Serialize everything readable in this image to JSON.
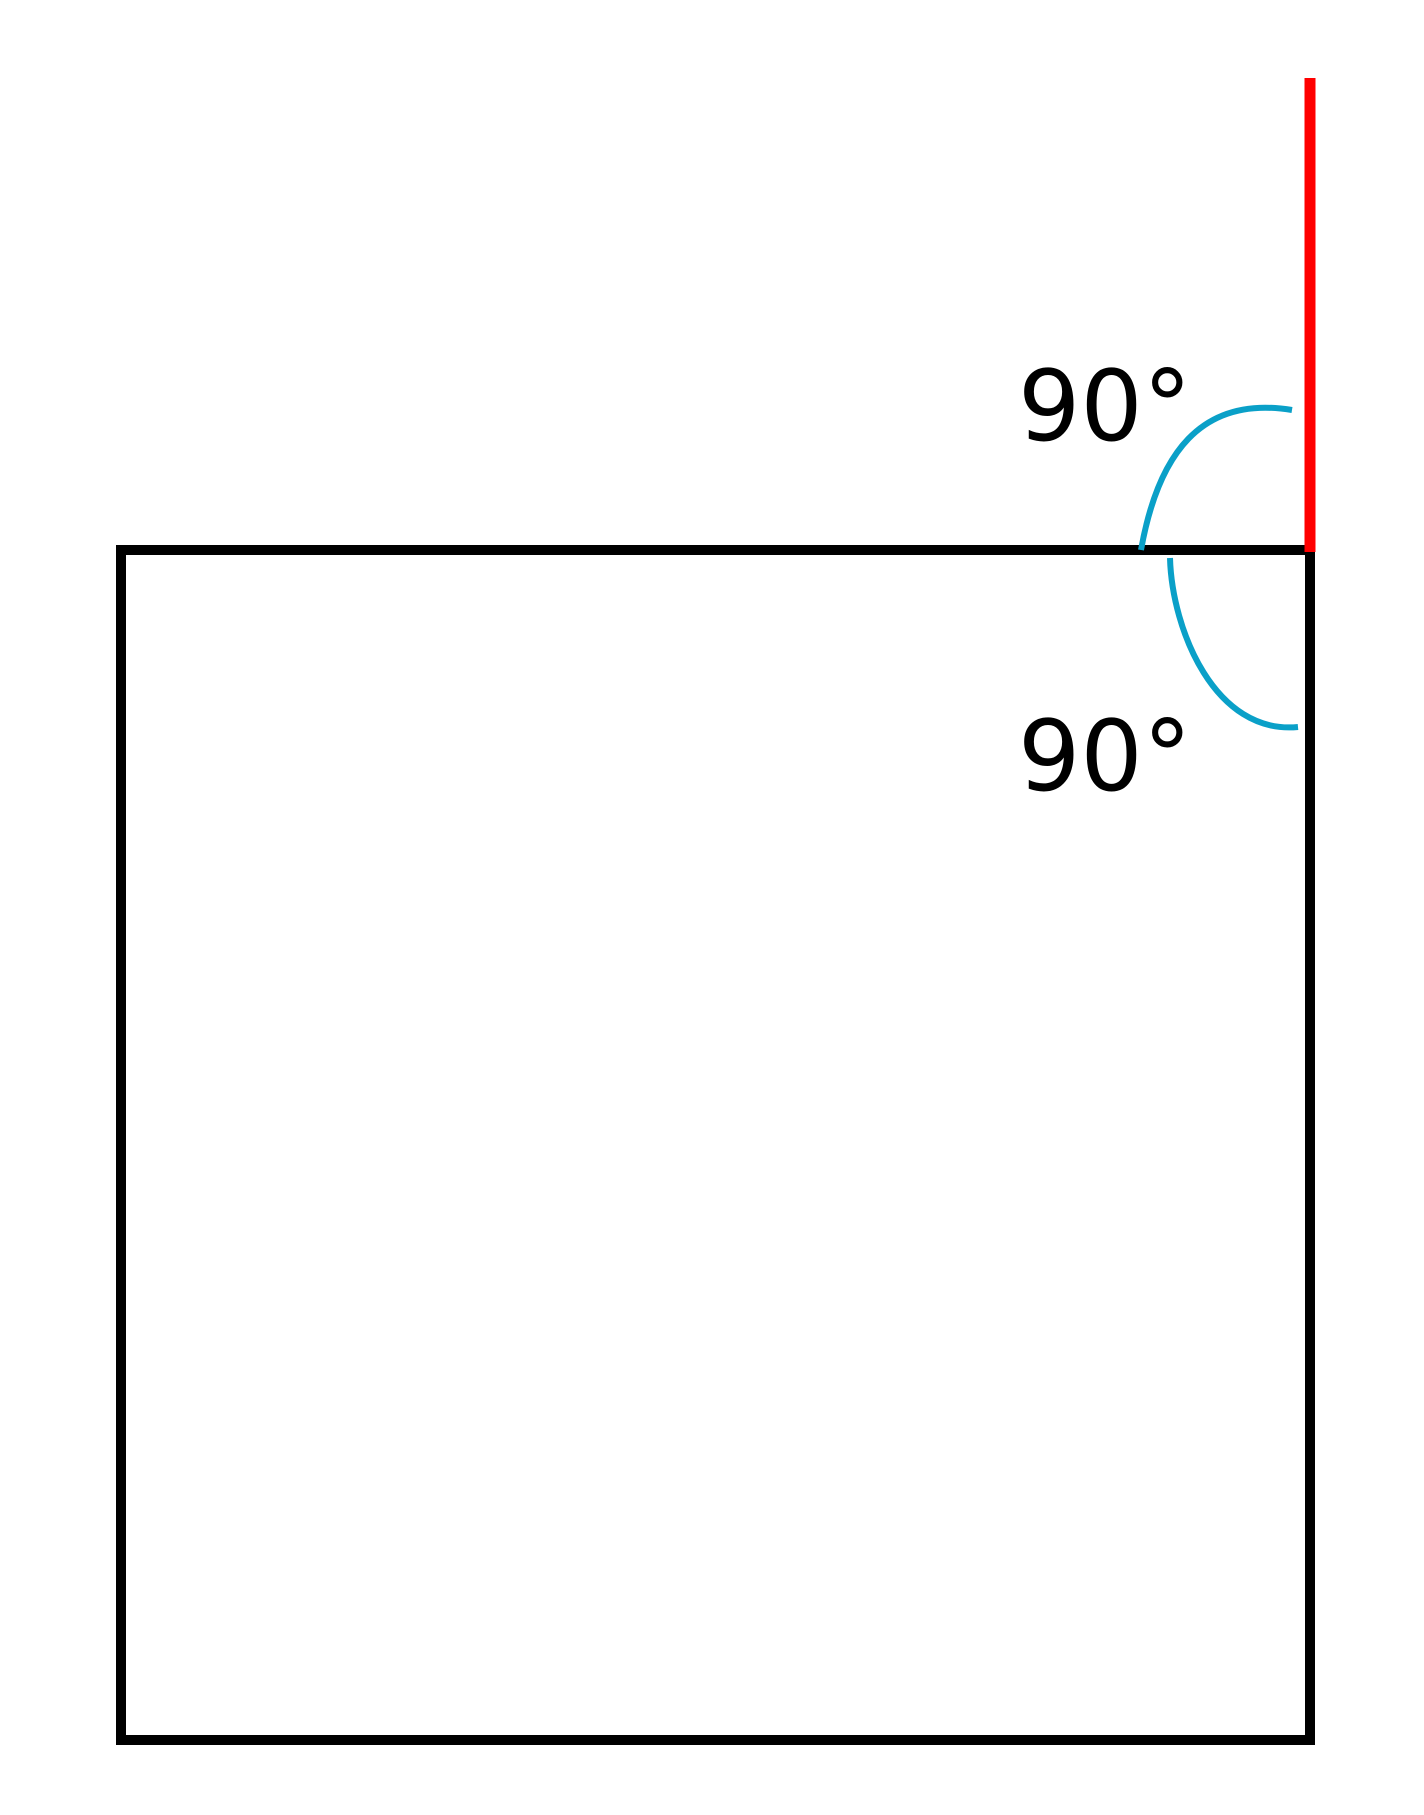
{
  "diagram": {
    "angle_labels": [
      "90°",
      "90°"
    ],
    "colors": {
      "square_outline": "#000000",
      "extended_line": "#ff0000",
      "angle_arcs": "#0aa0c8",
      "background": "#ffffff"
    },
    "shapes": {
      "square": "square-outline",
      "extension": "red-vertical-line",
      "arcs": [
        "exterior-angle-arc",
        "interior-angle-arc"
      ]
    }
  }
}
